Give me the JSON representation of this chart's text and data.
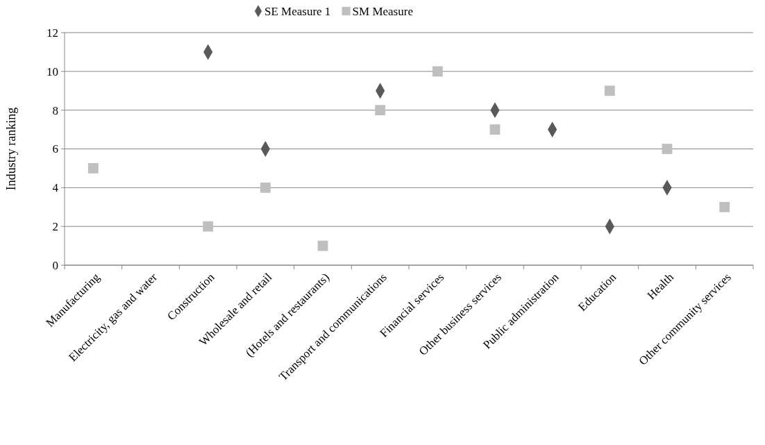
{
  "chart_data": {
    "type": "scatter",
    "ylabel": "Industry ranking",
    "categories": [
      "Manufacturing",
      "Electricity, gas and water",
      "Construction",
      "Wholesale and retail",
      "(Hotels and restaurants)",
      "Transport and communications",
      "Financial services",
      "Other business services",
      "Public administration",
      "Education",
      "Health",
      "Other community services"
    ],
    "series": [
      {
        "name": "SE Measure 1",
        "color": "#595959",
        "marker": "diamond",
        "values": [
          null,
          null,
          11,
          6,
          null,
          9,
          null,
          8,
          7,
          2,
          4,
          null
        ]
      },
      {
        "name": "SM Measure",
        "color": "#bfbfbf",
        "marker": "square",
        "values": [
          5,
          null,
          2,
          4,
          1,
          8,
          10,
          7,
          null,
          9,
          6,
          3
        ]
      }
    ],
    "ylim": [
      0,
      12
    ],
    "yticks": [
      0,
      2,
      4,
      6,
      8,
      10,
      12
    ],
    "grid": "y",
    "legend": "top"
  }
}
